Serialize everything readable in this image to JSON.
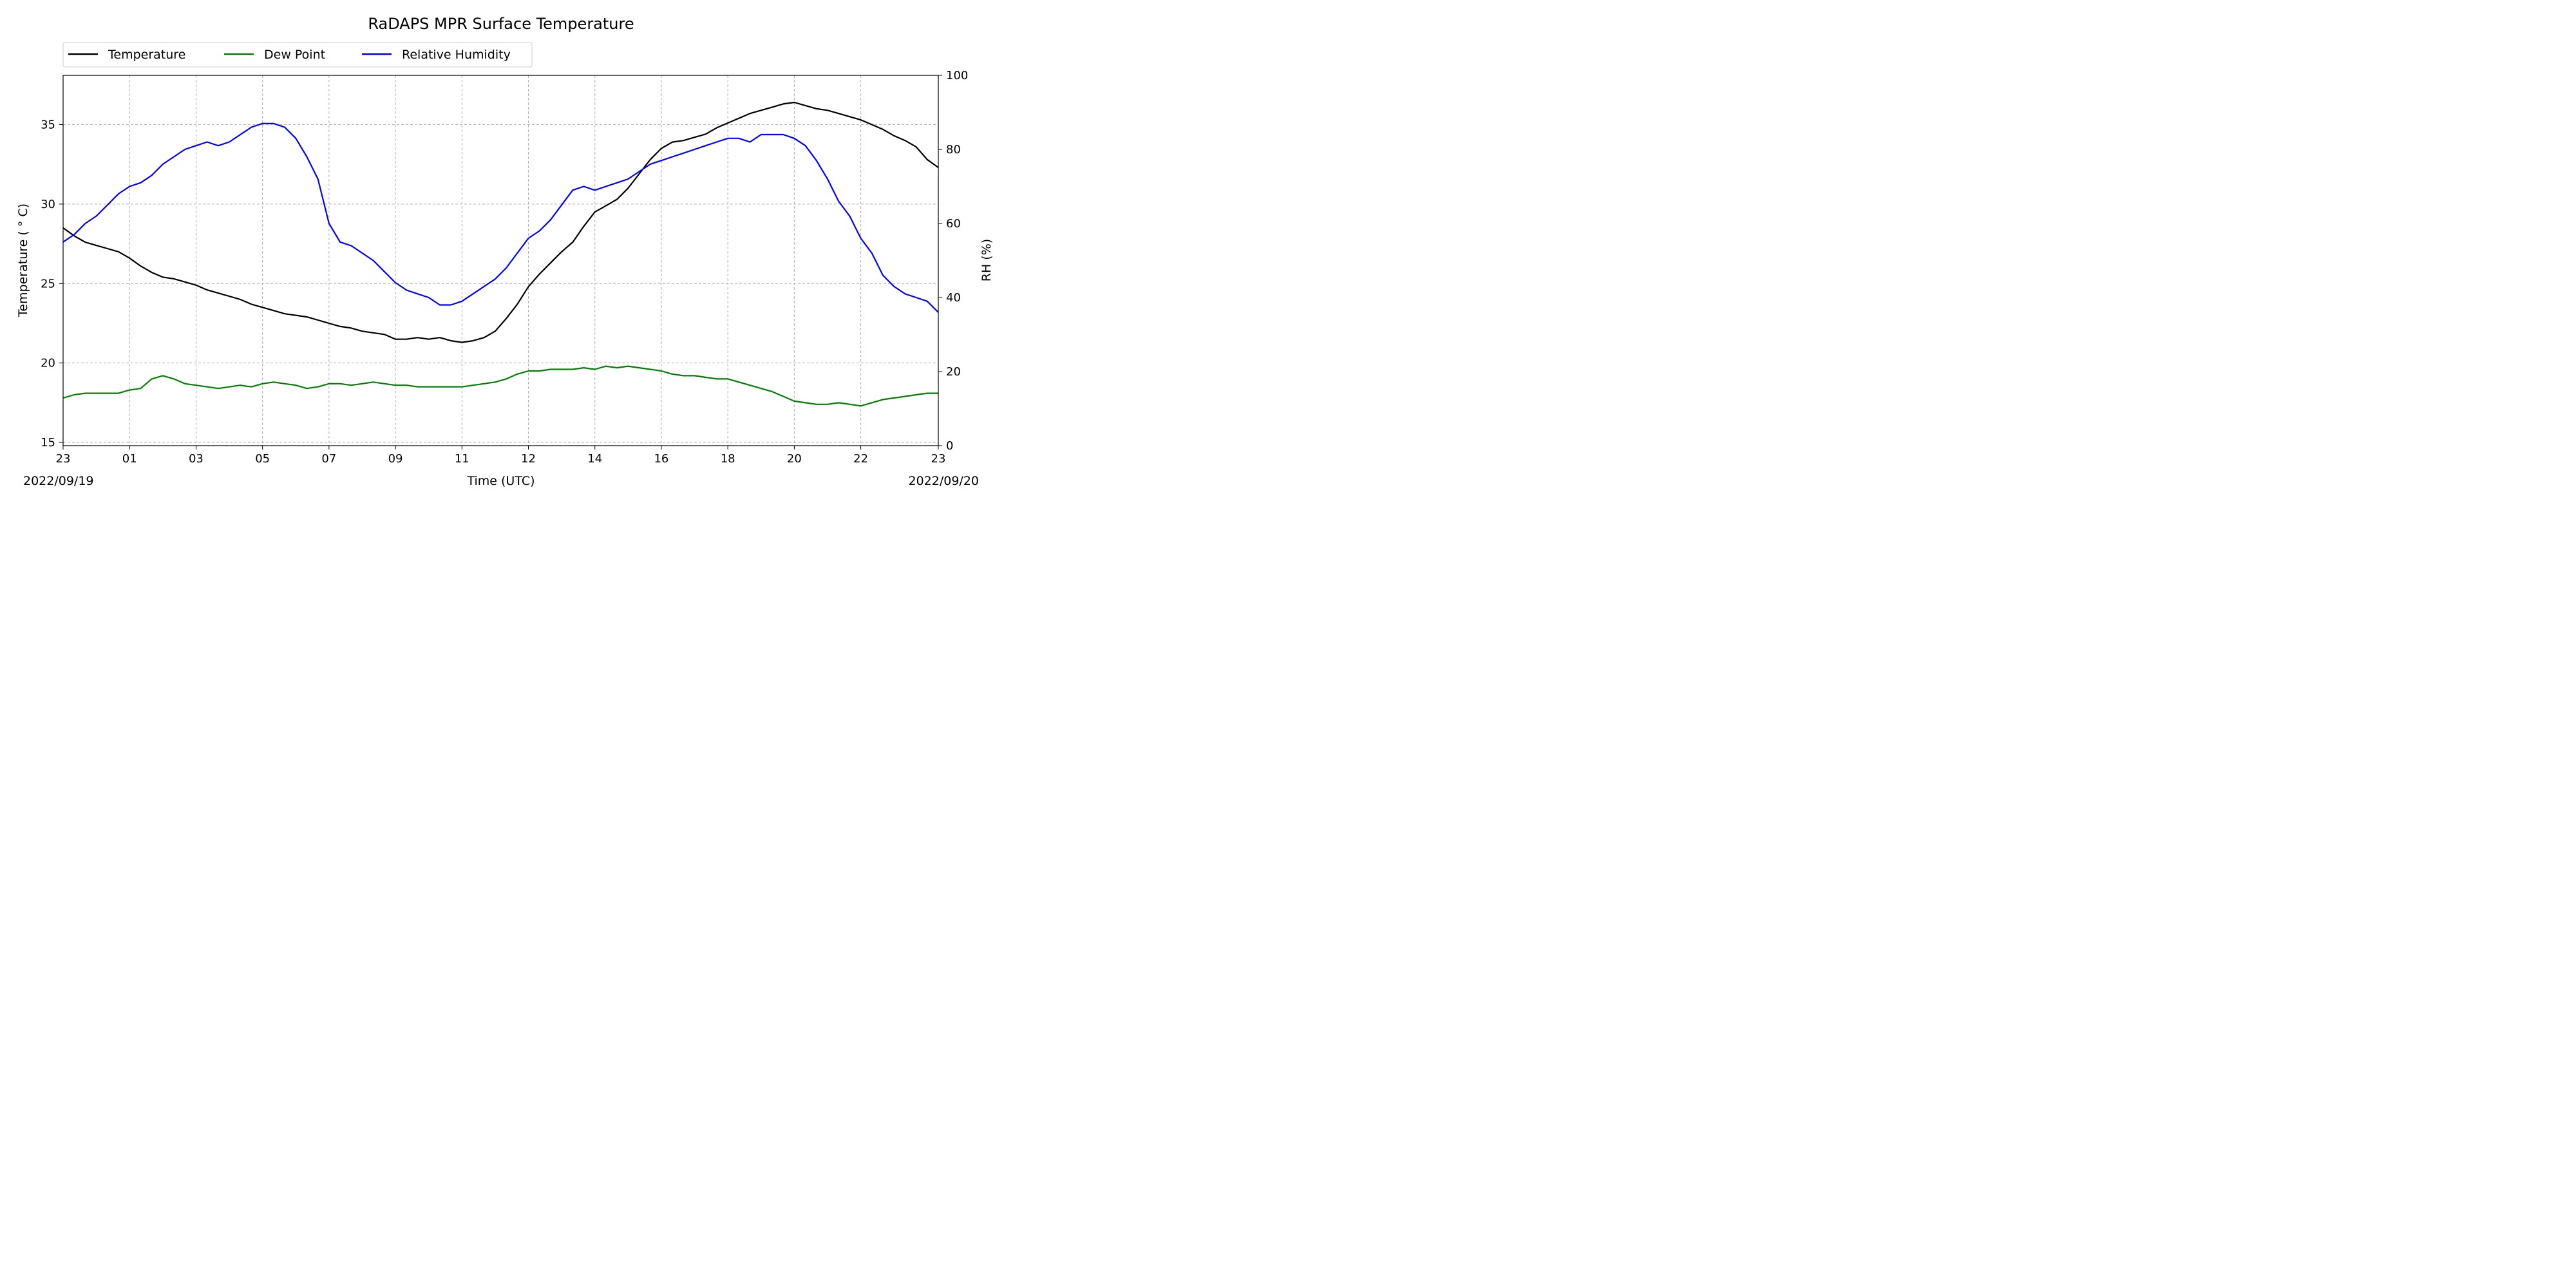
{
  "chart_data": {
    "type": "line",
    "title": "RaDAPS MPR Surface Temperature",
    "xlabel": "Time (UTC)",
    "ylabel": "Temperature ($^\\circ$C)",
    "ylabel_display": "Temperature ( ° C)",
    "y2label": "RH (%)",
    "date_start": "2022/09/19",
    "date_end": "2022/09/20",
    "x_tick_labels": [
      "23",
      "01",
      "03",
      "05",
      "07",
      "09",
      "11",
      "12",
      "14",
      "16",
      "18",
      "20",
      "22",
      "23"
    ],
    "ylim": [
      14.8,
      38.1
    ],
    "y_ticks": [
      15,
      20,
      25,
      30,
      35
    ],
    "y2lim": [
      0,
      100
    ],
    "y2_ticks": [
      0,
      20,
      40,
      60,
      80,
      100
    ],
    "grid": true,
    "legend_position": "top-left, above plot",
    "series": [
      {
        "name": "Temperature",
        "axis": "left",
        "color": "#000000",
        "points": [
          [
            0,
            28.5
          ],
          [
            0.5,
            28.0
          ],
          [
            1,
            27.6
          ],
          [
            1.5,
            27.4
          ],
          [
            2,
            27.2
          ],
          [
            2.5,
            27.0
          ],
          [
            3,
            26.6
          ],
          [
            3.5,
            26.1
          ],
          [
            4,
            25.7
          ],
          [
            4.5,
            25.4
          ],
          [
            5,
            25.3
          ],
          [
            5.5,
            25.1
          ],
          [
            6,
            24.9
          ],
          [
            6.5,
            24.6
          ],
          [
            7,
            24.4
          ],
          [
            7.5,
            24.2
          ],
          [
            8,
            24.0
          ],
          [
            8.5,
            23.7
          ],
          [
            9,
            23.5
          ],
          [
            9.5,
            23.3
          ],
          [
            10,
            23.1
          ],
          [
            10.5,
            23.0
          ],
          [
            11,
            22.9
          ],
          [
            11.5,
            22.7
          ],
          [
            12,
            22.5
          ],
          [
            12.5,
            22.3
          ],
          [
            13,
            22.2
          ],
          [
            13.5,
            22.0
          ],
          [
            14,
            21.9
          ],
          [
            14.5,
            21.8
          ],
          [
            15,
            21.5
          ],
          [
            15.5,
            21.5
          ],
          [
            16,
            21.6
          ],
          [
            16.5,
            21.5
          ],
          [
            17,
            21.6
          ],
          [
            17.5,
            21.4
          ],
          [
            18,
            21.3
          ],
          [
            18.5,
            21.4
          ],
          [
            19,
            21.6
          ],
          [
            19.5,
            22.0
          ],
          [
            20,
            22.8
          ],
          [
            20.5,
            23.7
          ],
          [
            21,
            24.8
          ],
          [
            21.5,
            25.6
          ],
          [
            22,
            26.3
          ],
          [
            22.5,
            27.0
          ],
          [
            23,
            27.6
          ],
          [
            23.5,
            28.6
          ],
          [
            24,
            29.5
          ],
          [
            24.5,
            29.9
          ],
          [
            25,
            30.3
          ],
          [
            25.5,
            31.0
          ],
          [
            26,
            31.9
          ],
          [
            26.5,
            32.8
          ],
          [
            27,
            33.5
          ],
          [
            27.5,
            33.9
          ],
          [
            28,
            34.0
          ],
          [
            28.5,
            34.2
          ],
          [
            29,
            34.4
          ],
          [
            29.5,
            34.8
          ],
          [
            30,
            35.1
          ],
          [
            30.5,
            35.4
          ],
          [
            31,
            35.7
          ],
          [
            31.5,
            35.9
          ],
          [
            32,
            36.1
          ],
          [
            32.5,
            36.3
          ],
          [
            33,
            36.4
          ],
          [
            33.5,
            36.2
          ],
          [
            34,
            36.0
          ],
          [
            34.5,
            35.9
          ],
          [
            35,
            35.7
          ],
          [
            35.5,
            35.5
          ],
          [
            36,
            35.3
          ],
          [
            36.5,
            35.0
          ],
          [
            37,
            34.7
          ],
          [
            37.5,
            34.3
          ],
          [
            38,
            34.0
          ],
          [
            38.5,
            33.6
          ],
          [
            39,
            32.8
          ],
          [
            39.5,
            32.3
          ]
        ]
      },
      {
        "name": "Dew Point",
        "axis": "left",
        "color": "#008000",
        "points": [
          [
            0,
            17.8
          ],
          [
            0.5,
            18.0
          ],
          [
            1,
            18.1
          ],
          [
            1.5,
            18.1
          ],
          [
            2,
            18.1
          ],
          [
            2.5,
            18.1
          ],
          [
            3,
            18.3
          ],
          [
            3.5,
            18.4
          ],
          [
            4,
            19.0
          ],
          [
            4.5,
            19.2
          ],
          [
            5,
            19.0
          ],
          [
            5.5,
            18.7
          ],
          [
            6,
            18.6
          ],
          [
            6.5,
            18.5
          ],
          [
            7,
            18.4
          ],
          [
            7.5,
            18.5
          ],
          [
            8,
            18.6
          ],
          [
            8.5,
            18.5
          ],
          [
            9,
            18.7
          ],
          [
            9.5,
            18.8
          ],
          [
            10,
            18.7
          ],
          [
            10.5,
            18.6
          ],
          [
            11,
            18.4
          ],
          [
            11.5,
            18.5
          ],
          [
            12,
            18.7
          ],
          [
            12.5,
            18.7
          ],
          [
            13,
            18.6
          ],
          [
            13.5,
            18.7
          ],
          [
            14,
            18.8
          ],
          [
            14.5,
            18.7
          ],
          [
            15,
            18.6
          ],
          [
            15.5,
            18.6
          ],
          [
            16,
            18.5
          ],
          [
            16.5,
            18.5
          ],
          [
            17,
            18.5
          ],
          [
            17.5,
            18.5
          ],
          [
            18,
            18.5
          ],
          [
            18.5,
            18.6
          ],
          [
            19,
            18.7
          ],
          [
            19.5,
            18.8
          ],
          [
            20,
            19.0
          ],
          [
            20.5,
            19.3
          ],
          [
            21,
            19.5
          ],
          [
            21.5,
            19.5
          ],
          [
            22,
            19.6
          ],
          [
            22.5,
            19.6
          ],
          [
            23,
            19.6
          ],
          [
            23.5,
            19.7
          ],
          [
            24,
            19.6
          ],
          [
            24.5,
            19.8
          ],
          [
            25,
            19.7
          ],
          [
            25.5,
            19.8
          ],
          [
            26,
            19.7
          ],
          [
            26.5,
            19.6
          ],
          [
            27,
            19.5
          ],
          [
            27.5,
            19.3
          ],
          [
            28,
            19.2
          ],
          [
            28.5,
            19.2
          ],
          [
            29,
            19.1
          ],
          [
            29.5,
            19.0
          ],
          [
            30,
            19.0
          ],
          [
            30.5,
            18.8
          ],
          [
            31,
            18.6
          ],
          [
            31.5,
            18.4
          ],
          [
            32,
            18.2
          ],
          [
            32.5,
            17.9
          ],
          [
            33,
            17.6
          ],
          [
            33.5,
            17.5
          ],
          [
            34,
            17.4
          ],
          [
            34.5,
            17.4
          ],
          [
            35,
            17.5
          ],
          [
            35.5,
            17.4
          ],
          [
            36,
            17.3
          ],
          [
            36.5,
            17.5
          ],
          [
            37,
            17.7
          ],
          [
            37.5,
            17.8
          ],
          [
            38,
            17.9
          ],
          [
            38.5,
            18.0
          ],
          [
            39,
            18.1
          ],
          [
            39.5,
            18.1
          ]
        ]
      },
      {
        "name": "Relative Humidity",
        "axis": "right",
        "color": "#0000ff",
        "points": [
          [
            0,
            55
          ],
          [
            0.5,
            57
          ],
          [
            1,
            60
          ],
          [
            1.5,
            62
          ],
          [
            2,
            65
          ],
          [
            2.5,
            68
          ],
          [
            3,
            70
          ],
          [
            3.5,
            71
          ],
          [
            4,
            73
          ],
          [
            4.5,
            76
          ],
          [
            5,
            78
          ],
          [
            5.5,
            80
          ],
          [
            6,
            81
          ],
          [
            6.5,
            82
          ],
          [
            7,
            81
          ],
          [
            7.5,
            82
          ],
          [
            8,
            84
          ],
          [
            8.5,
            86
          ],
          [
            9,
            87
          ],
          [
            9.5,
            87
          ],
          [
            10,
            86
          ],
          [
            10.5,
            83
          ],
          [
            11,
            78
          ],
          [
            11.5,
            72
          ],
          [
            12,
            60
          ],
          [
            12.5,
            55
          ],
          [
            13,
            54
          ],
          [
            13.5,
            52
          ],
          [
            14,
            50
          ],
          [
            14.5,
            47
          ],
          [
            15,
            44
          ],
          [
            15.5,
            42
          ],
          [
            16,
            41
          ],
          [
            16.5,
            40
          ],
          [
            17,
            38
          ],
          [
            17.5,
            38
          ],
          [
            18,
            39
          ],
          [
            18.5,
            41
          ],
          [
            19,
            43
          ],
          [
            19.5,
            45
          ],
          [
            20,
            48
          ],
          [
            20.5,
            52
          ],
          [
            21,
            56
          ],
          [
            21.5,
            58
          ],
          [
            22,
            61
          ],
          [
            22.5,
            65
          ],
          [
            23,
            69
          ],
          [
            23.5,
            70
          ],
          [
            24,
            69
          ],
          [
            24.5,
            70
          ],
          [
            25,
            71
          ],
          [
            25.5,
            72
          ],
          [
            26,
            74
          ],
          [
            26.5,
            76
          ],
          [
            27,
            77
          ],
          [
            27.5,
            78
          ],
          [
            28,
            79
          ],
          [
            28.5,
            80
          ],
          [
            29,
            81
          ],
          [
            29.5,
            82
          ],
          [
            30,
            83
          ],
          [
            30.5,
            83
          ],
          [
            31,
            82
          ],
          [
            31.5,
            84
          ],
          [
            32,
            84
          ],
          [
            32.5,
            84
          ],
          [
            33,
            83
          ],
          [
            33.5,
            81
          ],
          [
            34,
            77
          ],
          [
            34.5,
            72
          ],
          [
            35,
            66
          ],
          [
            35.5,
            62
          ],
          [
            36,
            56
          ],
          [
            36.5,
            52
          ],
          [
            37,
            46
          ],
          [
            37.5,
            43
          ],
          [
            38,
            41
          ],
          [
            38.5,
            40
          ],
          [
            39,
            39
          ],
          [
            39.5,
            36
          ]
        ]
      }
    ]
  }
}
